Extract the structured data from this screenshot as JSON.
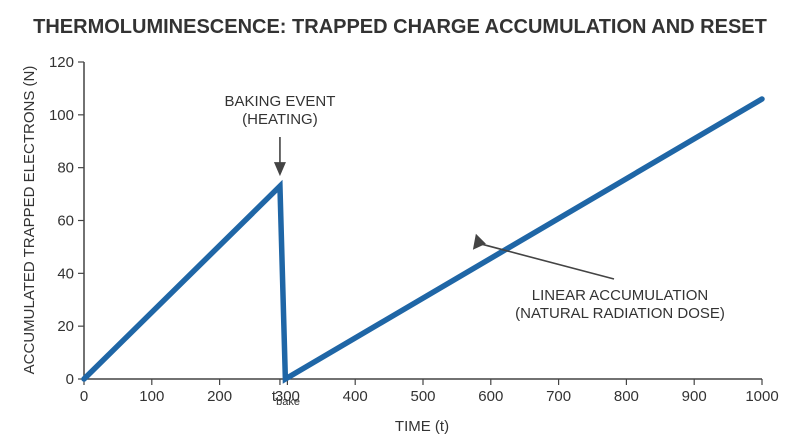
{
  "chart_data": {
    "type": "line",
    "title": "THERMOLUMINESCENCE: TRAPPED CHARGE ACCUMULATION AND RESET",
    "xlabel": "TIME (t)",
    "ylabel": "ACCUMULATED TRAPPED ELECTRONS (N)",
    "xlim": [
      0,
      1000
    ],
    "ylim": [
      0,
      120
    ],
    "x_ticks": [
      0,
      100,
      200,
      "t_bake",
      300,
      400,
      500,
      600,
      700,
      800,
      900,
      1000
    ],
    "y_ticks": [
      0,
      20,
      40,
      60,
      80,
      100,
      120
    ],
    "tbake_label": {
      "main": "t",
      "sub": "bake"
    },
    "grid": false,
    "series": [
      {
        "color": "#1f66a6",
        "points": [
          {
            "x": 0,
            "y": 0
          },
          {
            "x": 289,
            "y": 73
          },
          {
            "x": 297,
            "y": 0
          },
          {
            "x": 1000,
            "y": 106
          }
        ]
      }
    ],
    "annotations": [
      {
        "text_lines": [
          "BAKING EVENT",
          "(HEATING)"
        ],
        "points_to": {
          "x": 289,
          "y": 73
        }
      },
      {
        "text_lines": [
          "LINEAR ACCUMULATION",
          "(NATURAL RADIATION DOSE)"
        ],
        "points_to": {
          "x": 637,
          "y": 55
        }
      }
    ]
  }
}
